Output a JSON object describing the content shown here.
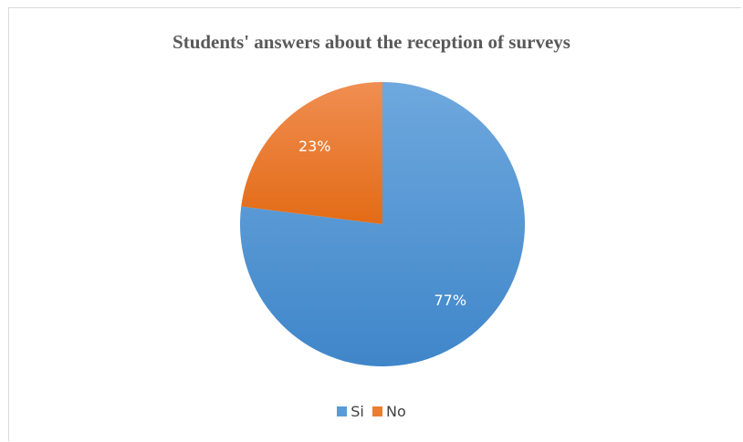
{
  "chart_data": {
    "type": "pie",
    "title": "Students' answers about the reception of surveys",
    "categories": [
      "Si",
      "No"
    ],
    "values": [
      77,
      23
    ],
    "labels": [
      "77%",
      "23%"
    ],
    "colors": [
      "#5b9bd5",
      "#ed7d31"
    ],
    "legend_position": "bottom"
  }
}
